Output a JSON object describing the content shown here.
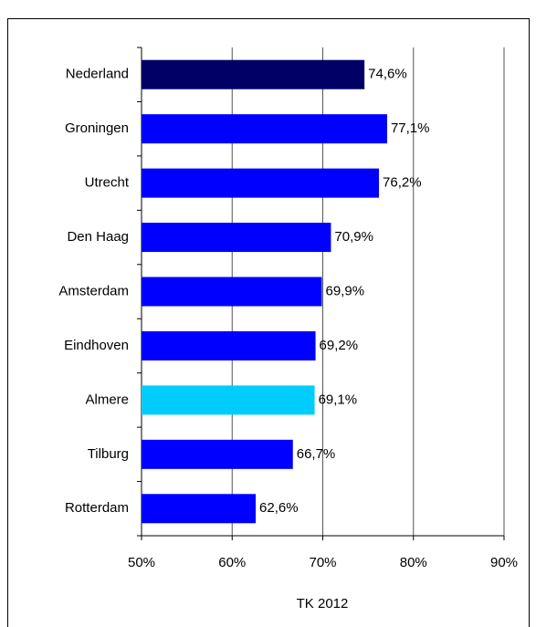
{
  "chart_data": {
    "type": "bar",
    "orientation": "horizontal",
    "categories": [
      "Nederland",
      "Groningen",
      "Utrecht",
      "Den Haag",
      "Amsterdam",
      "Eindhoven",
      "Almere",
      "Tilburg",
      "Rotterdam"
    ],
    "values": [
      74.6,
      77.1,
      76.2,
      70.9,
      69.9,
      69.2,
      69.1,
      66.7,
      62.6
    ],
    "value_labels": [
      "74,6%",
      "77,1%",
      "76,2%",
      "70,9%",
      "69,9%",
      "69,2%",
      "69,1%",
      "66,7%",
      "62,6%"
    ],
    "colors": [
      "#000066",
      "#0000ff",
      "#0000ff",
      "#0000ff",
      "#0000ff",
      "#0000ff",
      "#00ccff",
      "#0000ff",
      "#0000ff"
    ],
    "xlim": [
      50,
      90
    ],
    "xticks": [
      {
        "value": 50,
        "label": "50%"
      },
      {
        "value": 60,
        "label": "60%"
      },
      {
        "value": 70,
        "label": "70%"
      },
      {
        "value": 80,
        "label": "80%"
      },
      {
        "value": 90,
        "label": "90%"
      }
    ],
    "xlabel": "TK 2012",
    "grid": true
  }
}
